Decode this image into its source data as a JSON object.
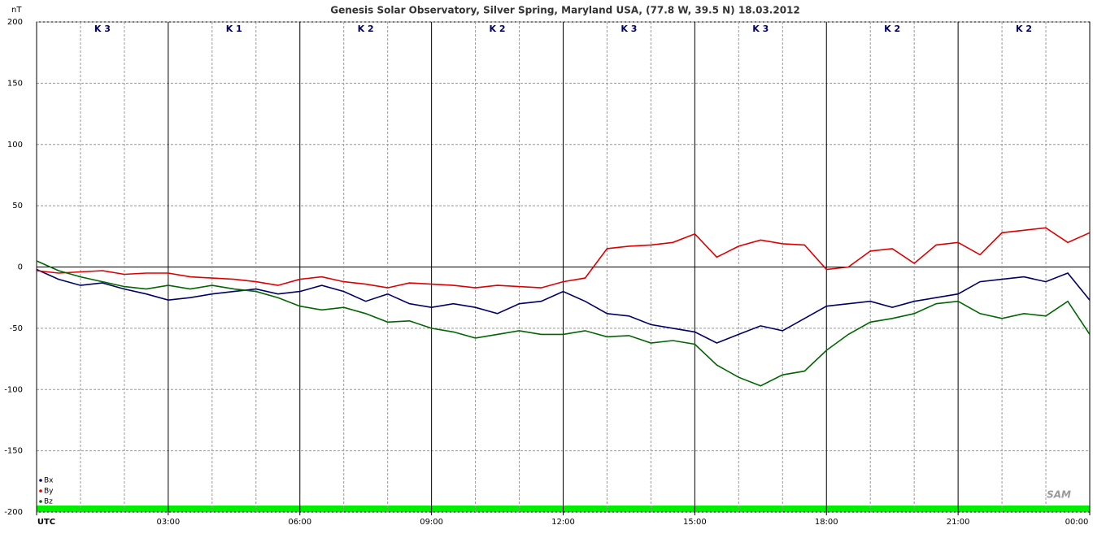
{
  "chart_data": {
    "type": "line",
    "title": "Genesis Solar Observatory, Silver Spring, Maryland USA, (77.8 W, 39.5 N)  18.03.2012",
    "y_label": "nT",
    "logo": "SAM",
    "k_indices": [
      "K 3",
      "K 1",
      "K 2",
      "K 2",
      "K 3",
      "K 3",
      "K 2",
      "K 2"
    ],
    "x": [
      0,
      0.5,
      1,
      1.5,
      2,
      2.5,
      3,
      3.5,
      4,
      4.5,
      5,
      5.5,
      6,
      6.5,
      7,
      7.5,
      8,
      8.5,
      9,
      9.5,
      10,
      10.5,
      11,
      11.5,
      12,
      12.5,
      13,
      13.5,
      14,
      14.5,
      15,
      15.5,
      16,
      16.5,
      17,
      17.5,
      18,
      18.5,
      19,
      19.5,
      20,
      20.5,
      21,
      21.5,
      22,
      22.5,
      23,
      23.5,
      24
    ],
    "series": [
      {
        "name": "Bx",
        "color": "#000066",
        "values": [
          -2,
          -10,
          -15,
          -13,
          -18,
          -22,
          -27,
          -25,
          -22,
          -20,
          -18,
          -22,
          -20,
          -15,
          -20,
          -28,
          -22,
          -30,
          -33,
          -30,
          -33,
          -38,
          -30,
          -28,
          -20,
          -28,
          -38,
          -40,
          -47,
          -50,
          -53,
          -62,
          -55,
          -48,
          -52,
          -42,
          -32,
          -30,
          -28,
          -33,
          -28,
          -25,
          -22,
          -12,
          -10,
          -8,
          -12,
          -5,
          -27
        ]
      },
      {
        "name": "By",
        "color": "#dd0000",
        "values": [
          -3,
          -5,
          -4,
          -3,
          -6,
          -5,
          -5,
          -8,
          -9,
          -10,
          -12,
          -15,
          -10,
          -8,
          -12,
          -14,
          -17,
          -13,
          -14,
          -15,
          -17,
          -15,
          -16,
          -17,
          -12,
          -9,
          15,
          17,
          18,
          20,
          27,
          8,
          17,
          22,
          19,
          18,
          -2,
          0,
          13,
          15,
          3,
          18,
          20,
          10,
          28,
          30,
          32,
          20,
          28
        ]
      },
      {
        "name": "Bz",
        "color": "#006600",
        "values": [
          5,
          -3,
          -8,
          -12,
          -16,
          -18,
          -15,
          -18,
          -15,
          -18,
          -20,
          -25,
          -32,
          -35,
          -33,
          -38,
          -45,
          -44,
          -50,
          -53,
          -58,
          -55,
          -52,
          -55,
          -55,
          -52,
          -57,
          -56,
          -62,
          -60,
          -63,
          -80,
          -90,
          -97,
          -88,
          -85,
          -68,
          -55,
          -45,
          -42,
          -38,
          -30,
          -28,
          -38,
          -42,
          -38,
          -40,
          -28,
          -55
        ]
      }
    ],
    "xlim": [
      0,
      24
    ],
    "xticks": [
      {
        "value": 0,
        "label": "UTC"
      },
      {
        "value": 3,
        "label": "03:00"
      },
      {
        "value": 6,
        "label": "06:00"
      },
      {
        "value": 9,
        "label": "09:00"
      },
      {
        "value": 12,
        "label": "12:00"
      },
      {
        "value": 15,
        "label": "15:00"
      },
      {
        "value": 18,
        "label": "18:00"
      },
      {
        "value": 21,
        "label": "21:00"
      },
      {
        "value": 24,
        "label": "00:00"
      }
    ],
    "x_minor_ticks": [
      1,
      2,
      4,
      5,
      7,
      8,
      10,
      11,
      13,
      14,
      16,
      17,
      19,
      20,
      22,
      23
    ],
    "ylim": [
      -200,
      200
    ],
    "yticks": [
      200,
      150,
      100,
      50,
      0,
      -50,
      -100,
      -150,
      -200
    ],
    "grid": true,
    "legend": "bottom-left"
  }
}
